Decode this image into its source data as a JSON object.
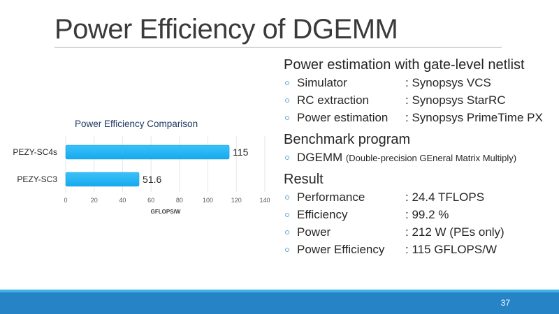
{
  "slide": {
    "title": "Power Efficiency of DGEMM",
    "page_number": "37"
  },
  "sections": [
    {
      "heading": "Power estimation with gate-level netlist",
      "items": [
        {
          "label": "Simulator",
          "value": ": Synopsys VCS"
        },
        {
          "label": "RC extraction",
          "value": ": Synopsys StarRC"
        },
        {
          "label": "Power estimation",
          "value": ": Synopsys PrimeTime PX"
        }
      ]
    },
    {
      "heading": "Benchmark program",
      "items": [
        {
          "label": "DGEMM",
          "note": "(Double-precision GEneral Matrix Multiply)"
        }
      ]
    },
    {
      "heading": "Result",
      "items": [
        {
          "label": "Performance",
          "value": ": 24.4 TFLOPS"
        },
        {
          "label": "Efficiency",
          "value": ": 99.2 %"
        },
        {
          "label": "Power",
          "value": ": 212 W (PEs only)"
        },
        {
          "label": "Power Efficiency",
          "value": ": 115 GFLOPS/W"
        }
      ]
    }
  ],
  "colors": {
    "bar": "#16aaf0",
    "footer": "#2683c6",
    "footer_stripe": "#3cb4e5"
  },
  "chart_data": {
    "type": "bar",
    "orientation": "horizontal",
    "title": "Power Efficiency Comparison",
    "categories": [
      "PEZY-SC4s",
      "PEZY-SC3"
    ],
    "values": [
      115,
      51.6
    ],
    "data_labels": [
      "115",
      "51.6"
    ],
    "xlabel": "GFLOPS/W",
    "ylabel": "",
    "xlim": [
      0,
      140
    ],
    "xticks": [
      0,
      20,
      40,
      60,
      80,
      100,
      120,
      140
    ],
    "grid": true,
    "legend": "none"
  }
}
